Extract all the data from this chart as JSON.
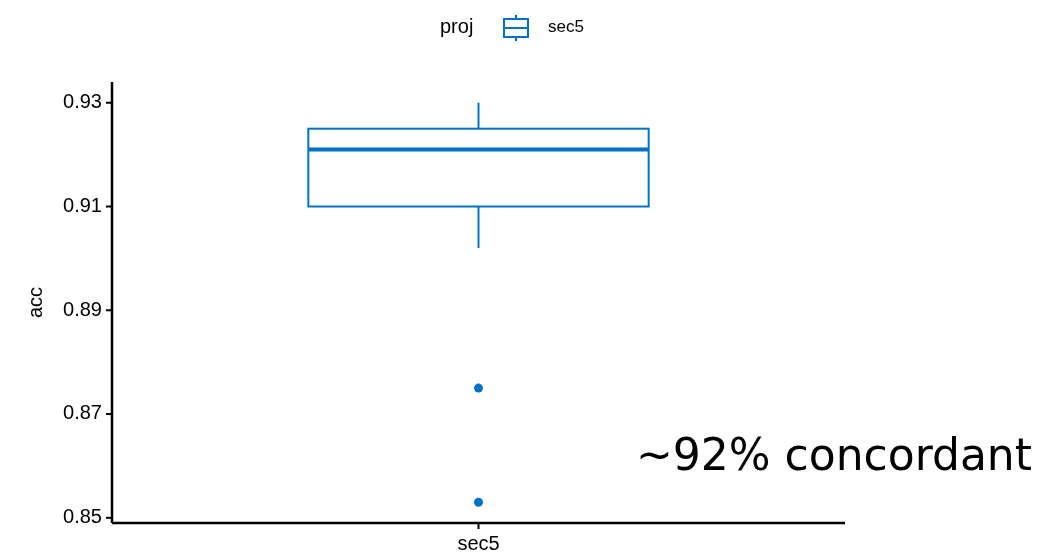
{
  "chart_data": {
    "type": "box",
    "ylabel": "acc",
    "legend_title": "proj",
    "legend": "top",
    "categories": [
      "sec5"
    ],
    "series": [
      {
        "name": "sec5",
        "color": "#0072c6",
        "boxes": [
          {
            "low": 0.902,
            "q1": 0.91,
            "median": 0.921,
            "q3": 0.925,
            "high": 0.93,
            "outliers": [
              0.875,
              0.853
            ]
          }
        ]
      }
    ],
    "ylim": [
      0.849,
      0.934
    ],
    "yticks": [
      0.85,
      0.87,
      0.89,
      0.91,
      0.93
    ],
    "annotations": [
      "~92% concordant"
    ]
  }
}
